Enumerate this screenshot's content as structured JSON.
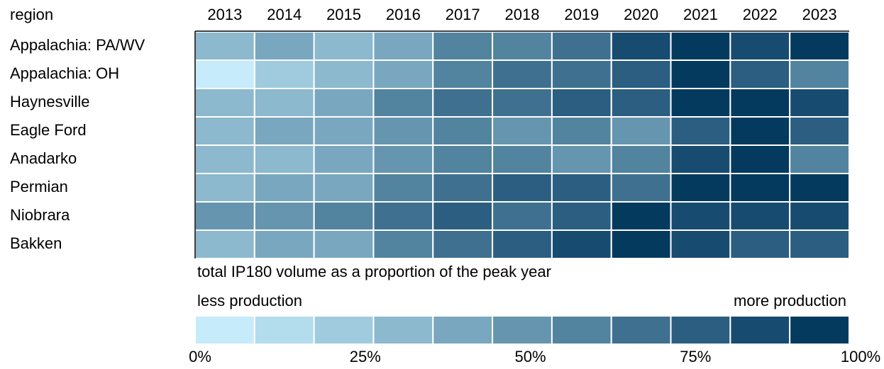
{
  "chart_data": {
    "type": "heatmap",
    "row_header": "region",
    "categories": [
      "2013",
      "2014",
      "2015",
      "2016",
      "2017",
      "2018",
      "2019",
      "2020",
      "2021",
      "2022",
      "2023"
    ],
    "rows": [
      "Appalachia: PA/WV",
      "Appalachia: OH",
      "Haynesville",
      "Eagle Ford",
      "Anadarko",
      "Permian",
      "Niobrara",
      "Bakken"
    ],
    "values": [
      [
        30,
        38,
        35,
        45,
        58,
        62,
        65,
        88,
        95,
        85,
        98
      ],
      [
        5,
        20,
        30,
        45,
        58,
        70,
        72,
        80,
        98,
        75,
        55
      ],
      [
        35,
        30,
        40,
        55,
        65,
        70,
        75,
        80,
        95,
        98,
        88
      ],
      [
        35,
        40,
        45,
        50,
        58,
        52,
        55,
        50,
        80,
        100,
        75
      ],
      [
        35,
        28,
        42,
        50,
        55,
        55,
        50,
        55,
        85,
        100,
        62
      ],
      [
        30,
        40,
        45,
        55,
        68,
        75,
        80,
        72,
        98,
        92,
        95
      ],
      [
        50,
        52,
        55,
        65,
        75,
        70,
        80,
        98,
        85,
        85,
        90
      ],
      [
        30,
        38,
        42,
        60,
        70,
        78,
        82,
        98,
        85,
        80,
        75
      ]
    ],
    "colors": [
      "#c6ebfb",
      "#b3dced",
      "#a0cbde",
      "#8cb9ce",
      "#79a7bf",
      "#6695af",
      "#52839f",
      "#3f7090",
      "#2b5e80",
      "#184b70",
      "#053a5f"
    ],
    "legend_title": "total IP180 volume as a proportion of the peak year",
    "legend_low": "less production",
    "legend_high": "more production",
    "xlim": [
      0,
      100
    ],
    "xticks": [
      {
        "value": 0,
        "label": "0%"
      },
      {
        "value": 25,
        "label": "25%"
      },
      {
        "value": 50,
        "label": "50%"
      },
      {
        "value": 75,
        "label": "75%"
      },
      {
        "value": 100,
        "label": "100%"
      }
    ]
  }
}
